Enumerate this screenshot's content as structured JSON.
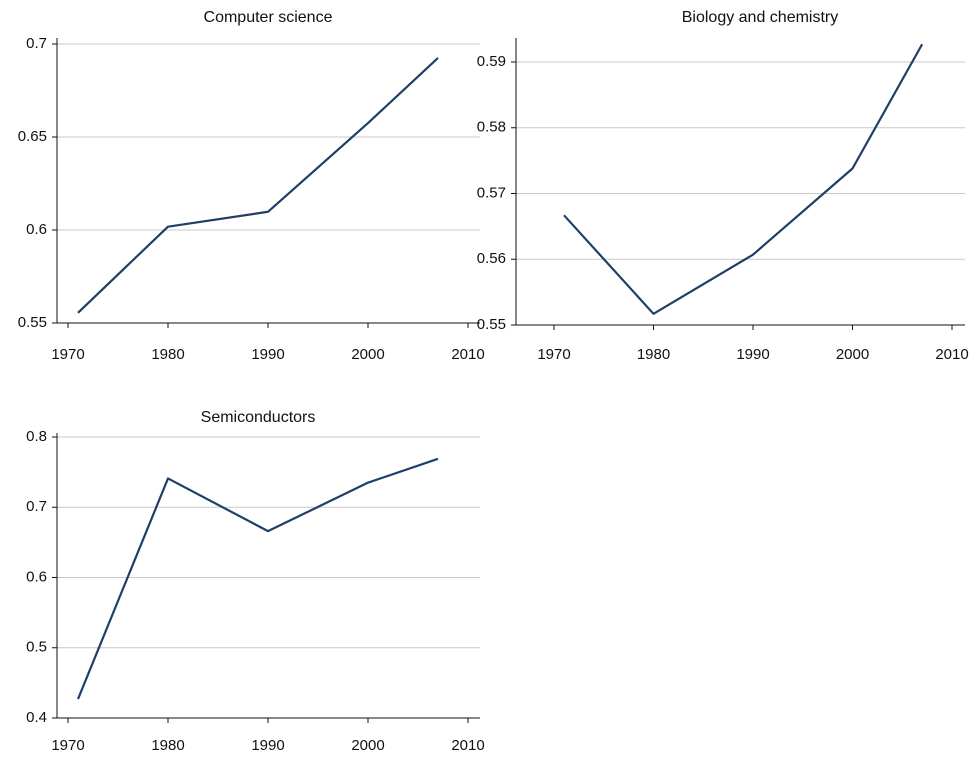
{
  "chart_data": [
    {
      "type": "line",
      "title": "Computer science",
      "x": [
        1971,
        1980,
        1990,
        2000,
        2007
      ],
      "values": [
        0.5555,
        0.6018,
        0.6098,
        0.6575,
        0.6925
      ],
      "color": "#1f3f66",
      "xlim": [
        1970,
        2010
      ],
      "xticks": [
        1970,
        1980,
        1990,
        2000,
        2010
      ],
      "ylim": [
        0.55,
        0.7
      ],
      "yticks": [
        0.55,
        0.6,
        0.65,
        0.7
      ],
      "grid": true
    },
    {
      "type": "line",
      "title": "Biology and chemistry",
      "x": [
        1971,
        1980,
        1990,
        2000,
        2007
      ],
      "values": [
        0.5667,
        0.5517,
        0.5607,
        0.5738,
        0.5927
      ],
      "color": "#1f3f66",
      "xlim": [
        1970,
        2010
      ],
      "xticks": [
        1970,
        1980,
        1990,
        2000,
        2010
      ],
      "ylim": [
        0.55,
        0.59
      ],
      "yticks": [
        0.55,
        0.56,
        0.57,
        0.58,
        0.59
      ],
      "grid": true
    },
    {
      "type": "line",
      "title": "Semiconductors",
      "x": [
        1971,
        1980,
        1990,
        2000,
        2007
      ],
      "values": [
        0.427,
        0.741,
        0.666,
        0.735,
        0.769
      ],
      "color": "#1f3f66",
      "xlim": [
        1970,
        2010
      ],
      "xticks": [
        1970,
        1980,
        1990,
        2000,
        2010
      ],
      "ylim": [
        0.4,
        0.8
      ],
      "yticks": [
        0.4,
        0.5,
        0.6,
        0.7,
        0.8
      ],
      "grid": true
    }
  ]
}
